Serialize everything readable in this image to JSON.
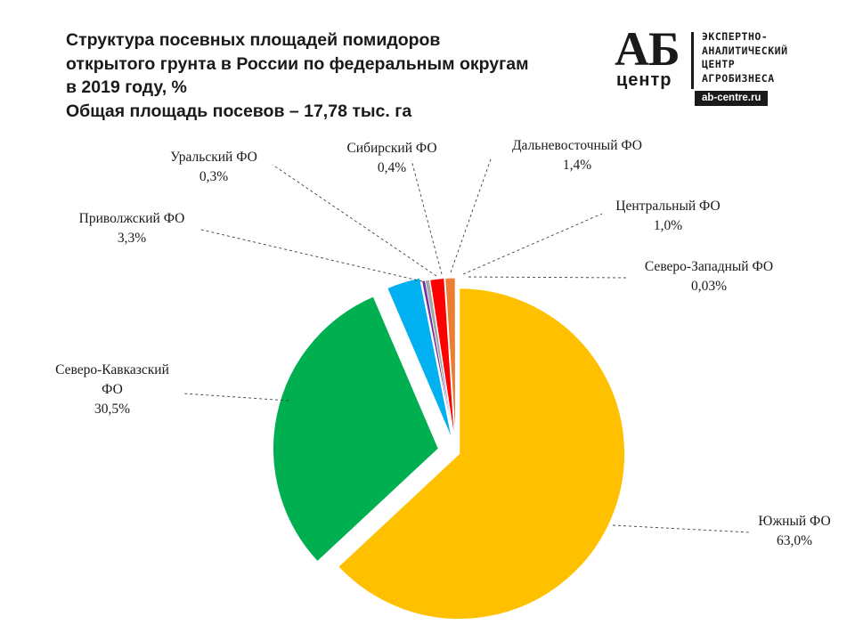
{
  "header": {
    "title_lines": [
      "Структура посевных площадей помидоров",
      "открытого грунта в России по федеральным округам",
      "в 2019 году, %",
      "Общая площадь посевов – 17,78 тыс. га"
    ]
  },
  "logo": {
    "ab": "АБ",
    "center": "центр",
    "lines": [
      "ЭКСПЕРТНО-",
      "АНАЛИТИЧЕСКИЙ",
      "ЦЕНТР",
      "АГРОБИЗНЕСА"
    ],
    "url": "ab-centre.ru"
  },
  "chart_data": {
    "type": "pie",
    "title": "Структура посевных площадей помидоров открытого грунта в России по федеральным округам в 2019 году, %",
    "subtitle": "Общая площадь посевов – 17,78 тыс. га",
    "unit": "%",
    "slices": [
      {
        "name": "Южный ФО",
        "value": 63.0,
        "label": "63,0%",
        "color": "#FFC000"
      },
      {
        "name": "Северо-Кавказский ФО",
        "value": 30.5,
        "label": "30,5%",
        "color": "#00B050"
      },
      {
        "name": "Приволжский ФО",
        "value": 3.3,
        "label": "3,3%",
        "color": "#00B0F0"
      },
      {
        "name": "Уральский ФО",
        "value": 0.3,
        "label": "0,3%",
        "color": "#7030A0"
      },
      {
        "name": "Сибирский ФО",
        "value": 0.4,
        "label": "0,4%",
        "color": "#A6A6A6"
      },
      {
        "name": "Дальневосточный ФО",
        "value": 1.4,
        "label": "1,4%",
        "color": "#FF0000"
      },
      {
        "name": "Центральный ФО",
        "value": 1.0,
        "label": "1,0%",
        "color": "#ED7D31"
      },
      {
        "name": "Северо-Западный ФО",
        "value": 0.03,
        "label": "0,03%",
        "color": "#1F3864"
      }
    ]
  }
}
